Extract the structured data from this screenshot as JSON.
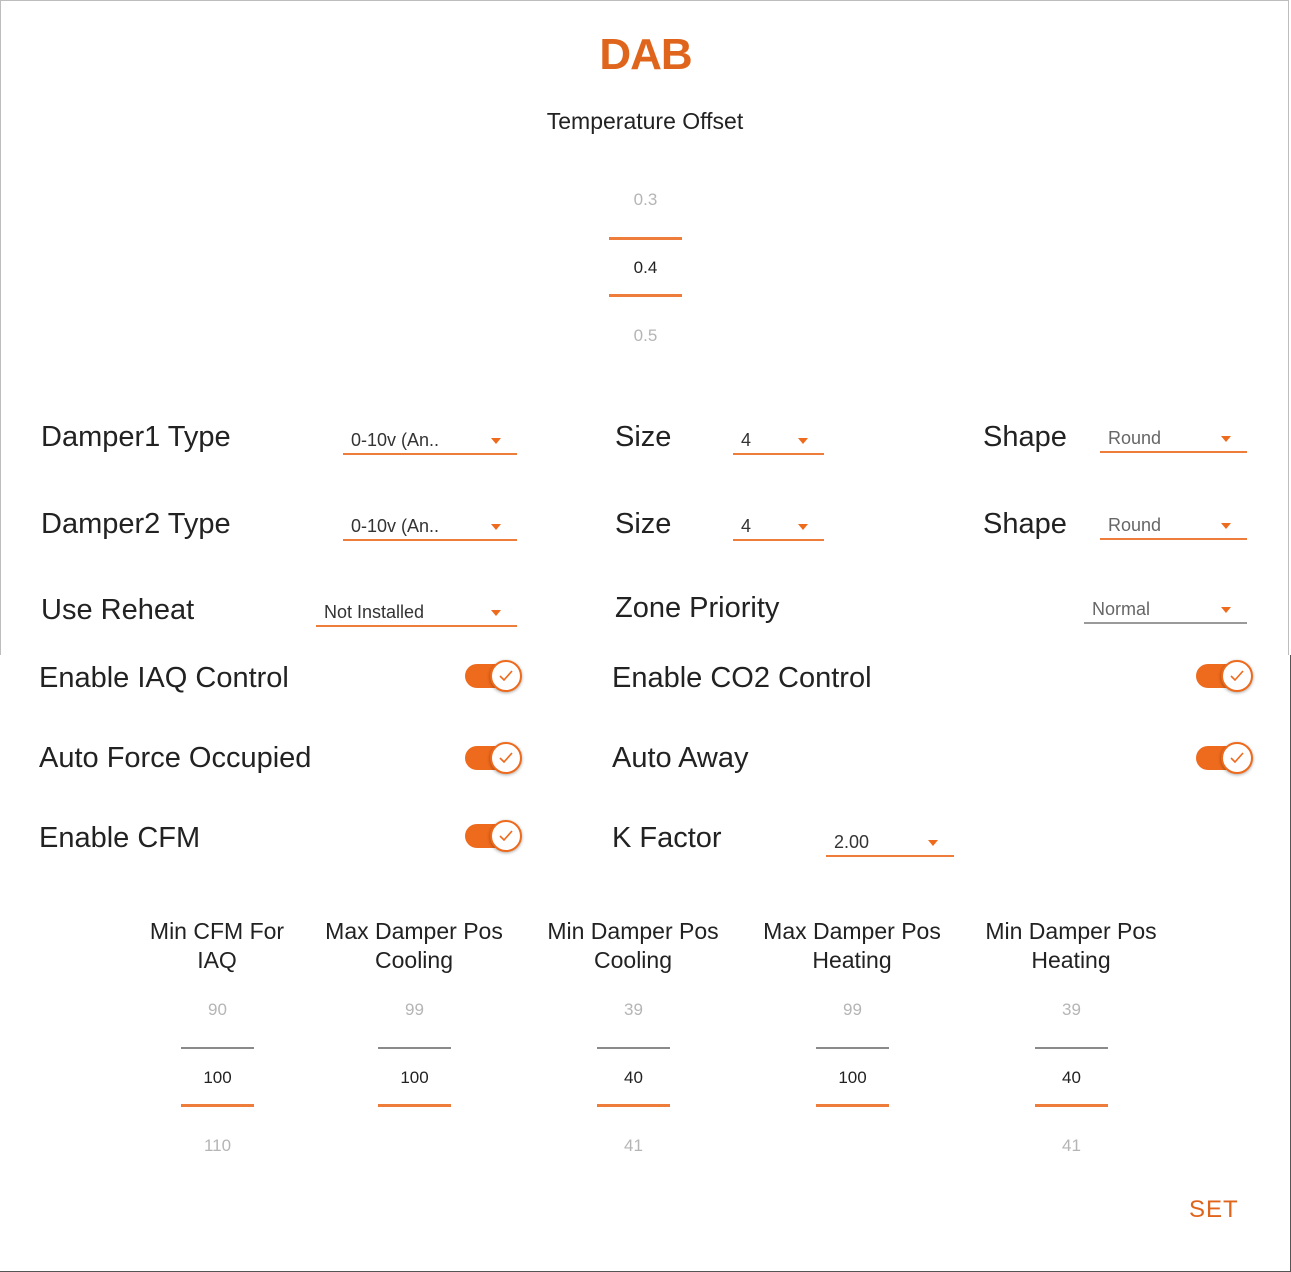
{
  "title": "DAB",
  "temp_offset": {
    "label": "Temperature Offset",
    "values": [
      "0.3",
      "0.4",
      "0.5"
    ]
  },
  "damper1": {
    "type_label": "Damper1 Type",
    "type_value": "0-10v (An..",
    "size_label": "Size",
    "size_value": "4",
    "shape_label": "Shape",
    "shape_value": "Round"
  },
  "damper2": {
    "type_label": "Damper2 Type",
    "type_value": "0-10v (An..",
    "size_label": "Size",
    "size_value": "4",
    "shape_label": "Shape",
    "shape_value": "Round"
  },
  "reheat": {
    "label": "Use Reheat",
    "value": "Not Installed"
  },
  "zone_priority": {
    "label": "Zone Priority",
    "value": "Normal"
  },
  "toggles": {
    "iaq": {
      "label": "Enable IAQ Control",
      "on": true
    },
    "co2": {
      "label": "Enable CO2 Control",
      "on": true
    },
    "auto_force": {
      "label": "Auto Force Occupied",
      "on": true
    },
    "auto_away": {
      "label": "Auto Away",
      "on": true
    },
    "cfm": {
      "label": "Enable CFM",
      "on": true
    }
  },
  "k_factor": {
    "label": "K Factor",
    "value": "2.00"
  },
  "pickers": [
    {
      "label": "Min CFM For IAQ",
      "prev": "90",
      "current": "100",
      "next": "110"
    },
    {
      "label": "Max Damper Pos Cooling",
      "prev": "99",
      "current": "100",
      "next": ""
    },
    {
      "label": "Min Damper Pos Cooling",
      "prev": "39",
      "current": "40",
      "next": "41"
    },
    {
      "label": "Max Damper Pos Heating",
      "prev": "99",
      "current": "100",
      "next": ""
    },
    {
      "label": "Min Damper Pos Heating",
      "prev": "39",
      "current": "40",
      "next": "41"
    }
  ],
  "set_label": "SET",
  "colors": {
    "accent": "#ee6a1c",
    "title": "#e0651c",
    "text": "#222222",
    "dim": "#b5b5b5"
  }
}
